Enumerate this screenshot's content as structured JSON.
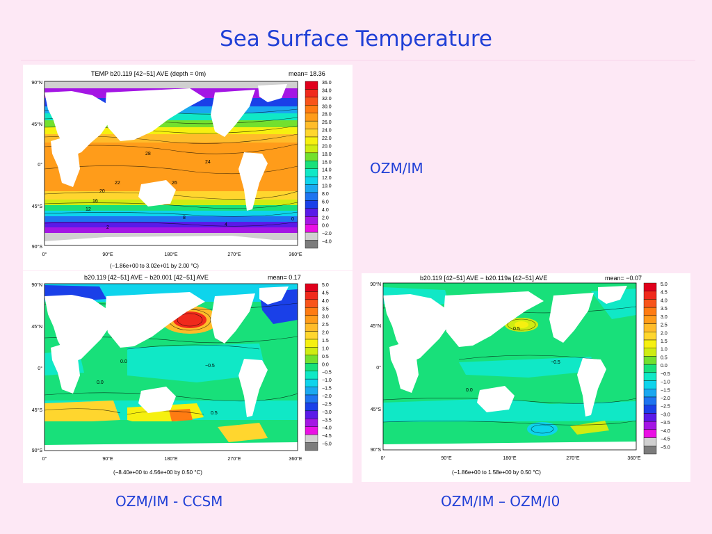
{
  "slide_title": "Sea Surface Temperature",
  "captions": {
    "top_right": "OZM/IM",
    "bottom_left": "OZM/IM - CCSM",
    "bottom_right": "OZM/IM – OZM/I0"
  },
  "panels": [
    {
      "header": "TEMP b20.119 [42−51] AVE   (depth = 0m)",
      "mean": "mean=   18.36",
      "range": "(−1.86e+00 to  3.02e+01 by   2.00 °C)",
      "lat_labels": [
        "90°N",
        "45°N",
        "0°",
        "45°S",
        "90°S"
      ],
      "lon_labels": [
        "0°",
        "90°E",
        "180°E",
        "270°E",
        "360°E"
      ],
      "colorbar": {
        "labels": [
          "36.0",
          "34.0",
          "32.0",
          "30.0",
          "28.0",
          "26.0",
          "24.0",
          "22.0",
          "20.0",
          "18.0",
          "16.0",
          "14.0",
          "12.0",
          "10.0",
          "8.0",
          "6.0",
          "4.0",
          "2.0",
          "0.0",
          "−2.0",
          "−4.0"
        ],
        "colors": [
          "#e0001c",
          "#f02a1c",
          "#f8541a",
          "#ff7b12",
          "#ff9c1a",
          "#ffbc2a",
          "#ffd62e",
          "#f6f010",
          "#cfec12",
          "#73e02e",
          "#18e07a",
          "#10e8c6",
          "#0ed4ec",
          "#1aa8f0",
          "#1e74f0",
          "#1a40e8",
          "#5a1ae8",
          "#a416e4",
          "#ea10e4",
          "#d0d0d0",
          "#7c7c7c"
        ]
      },
      "contour_labels": [
        "28",
        "24",
        "26",
        "22",
        "20",
        "16",
        "12",
        "8",
        "4",
        "2",
        "0"
      ]
    },
    {
      "header": "b20.119 [42−51] AVE − b20.001 [42−51] AVE",
      "mean": "mean=   0.17",
      "range": "(−8.40e+00 to  4.56e+00 by   0.50 °C)",
      "lat_labels": [
        "90°N",
        "45°N",
        "0°",
        "45°S",
        "90°S"
      ],
      "lon_labels": [
        "0°",
        "90°E",
        "180°E",
        "270°E",
        "360°E"
      ],
      "colorbar": {
        "labels": [
          "5.0",
          "4.5",
          "4.0",
          "3.5",
          "3.0",
          "2.5",
          "2.0",
          "1.5",
          "1.0",
          "0.5",
          "0.0",
          "−0.5",
          "−1.0",
          "−1.5",
          "−2.0",
          "−2.5",
          "−3.0",
          "−3.5",
          "−4.0",
          "−4.5",
          "−5.0"
        ],
        "colors": [
          "#e0001c",
          "#f02a1c",
          "#f8541a",
          "#ff7b12",
          "#ff9c1a",
          "#ffbc2a",
          "#ffd62e",
          "#f6f010",
          "#cfec12",
          "#73e02e",
          "#18e07a",
          "#10e8c6",
          "#0ed4ec",
          "#1aa8f0",
          "#1e74f0",
          "#1a40e8",
          "#5a1ae8",
          "#a416e4",
          "#ea10e4",
          "#d0d0d0",
          "#7c7c7c"
        ]
      },
      "contour_labels": [
        "0.0",
        "−0.5",
        "0.5"
      ]
    },
    {
      "header": "b20.119 [42−51] AVE − b20.119a [42−51] AVE",
      "mean": "mean=  −0.07",
      "range": "(−1.86e+00 to  1.58e+00 by   0.50 °C)",
      "lat_labels": [
        "90°N",
        "45°N",
        "0°",
        "45°S",
        "90°S"
      ],
      "lon_labels": [
        "0°",
        "90°E",
        "180°E",
        "270°E",
        "360°E"
      ],
      "colorbar": {
        "labels": [
          "5.0",
          "4.5",
          "4.0",
          "3.5",
          "3.0",
          "2.5",
          "2.0",
          "1.5",
          "1.0",
          "0.5",
          "0.0",
          "−0.5",
          "−1.0",
          "−1.5",
          "−2.0",
          "−2.5",
          "−3.0",
          "−3.5",
          "−4.0",
          "−4.5",
          "−5.0"
        ],
        "colors": [
          "#e0001c",
          "#f02a1c",
          "#f8541a",
          "#ff7b12",
          "#ff9c1a",
          "#ffbc2a",
          "#ffd62e",
          "#f6f010",
          "#cfec12",
          "#73e02e",
          "#18e07a",
          "#10e8c6",
          "#0ed4ec",
          "#1aa8f0",
          "#1e74f0",
          "#1a40e8",
          "#5a1ae8",
          "#a416e4",
          "#ea10e4",
          "#d0d0d0",
          "#7c7c7c"
        ]
      },
      "contour_labels": [
        "0.5",
        "0.0",
        "−0.5"
      ]
    }
  ]
}
